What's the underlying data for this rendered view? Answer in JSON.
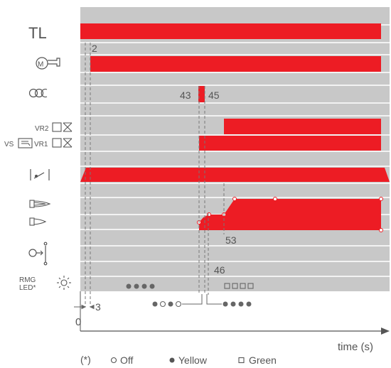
{
  "colors": {
    "panel": "#c8c8c8",
    "bar": "#ed1c24",
    "line": "#ffffff",
    "text": "#555555",
    "axis": "#555555",
    "dot": "#666666"
  },
  "rows": {
    "tl": "TL",
    "motor": "motor-symbol",
    "ignition": "ignition-transformer-symbol",
    "vr2": "VR2",
    "vs": "VS",
    "vr1": "VR1",
    "air_damper": "air-damper-symbol",
    "flame_high": "nozzle-flame-symbol",
    "flame_low": "nozzle-flame-symbol",
    "pressure_switch": "air-pressure-switch-symbol",
    "rmg": "RMG",
    "led": "LED*"
  },
  "annotations": {
    "t2": "2",
    "t43": "43",
    "t45": "45",
    "t53": "53",
    "t46": "46",
    "t3": "3",
    "zero": "0"
  },
  "axis": {
    "label": "time (s)"
  },
  "led_states": {
    "pre": "yellow,yellow,yellow,yellow",
    "ignition": "yellow,off,yellow,off",
    "run": "yellow,yellow,yellow,yellow",
    "flame": "green,green,green,green"
  },
  "legend": {
    "note": "(*)",
    "off": "Off",
    "yellow": "Yellow",
    "green": "Green"
  }
}
